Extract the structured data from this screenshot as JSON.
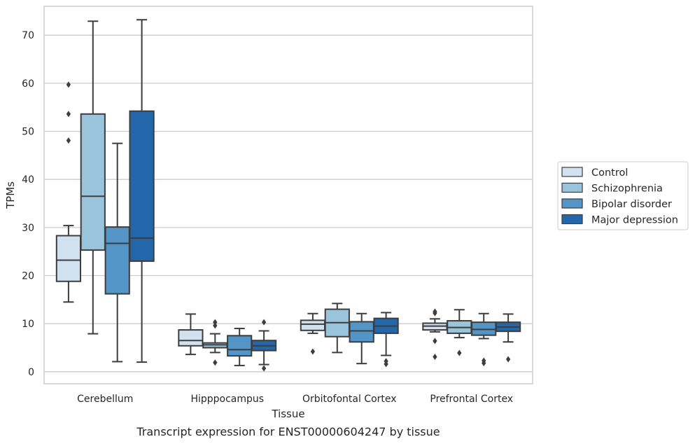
{
  "chart_data": {
    "type": "boxplot",
    "xlabel": "Tissue",
    "ylabel": "TPMs",
    "caption": "Transcript expression for ENST00000604247 by tissue",
    "ylim": [
      -2.5,
      76
    ],
    "yticks": [
      0,
      10,
      20,
      30,
      40,
      50,
      60,
      70
    ],
    "grid": "horizontal",
    "legend_position": "right",
    "categories": [
      "Cerebellum",
      "Hipppocampus",
      "Orbitofontal Cortex",
      "Prefrontal Cortex"
    ],
    "series": [
      {
        "name": "Control",
        "color": "#d1e1ef",
        "boxes": [
          {
            "whislo": 14.5,
            "q1": 18.8,
            "med": 23.2,
            "q3": 28.3,
            "whishi": 30.4,
            "fliers": [
              48.1,
              53.6,
              59.7
            ]
          },
          {
            "whislo": 3.6,
            "q1": 5.4,
            "med": 6.5,
            "q3": 8.7,
            "whishi": 12.0,
            "fliers": []
          },
          {
            "whislo": 8.0,
            "q1": 8.6,
            "med": 9.9,
            "q3": 10.7,
            "whishi": 12.1,
            "fliers": [
              4.2
            ]
          },
          {
            "whislo": 8.3,
            "q1": 8.7,
            "med": 9.5,
            "q3": 10.1,
            "whishi": 11.0,
            "fliers": [
              3.1,
              6.4,
              12.2,
              12.5
            ]
          }
        ]
      },
      {
        "name": "Schizophrenia",
        "color": "#9ac3dc",
        "boxes": [
          {
            "whislo": 7.9,
            "q1": 25.3,
            "med": 36.5,
            "q3": 53.6,
            "whishi": 72.9,
            "fliers": []
          },
          {
            "whislo": 4.0,
            "q1": 5.0,
            "med": 5.6,
            "q3": 6.0,
            "whishi": 7.9,
            "fliers": [
              1.9,
              9.6,
              10.3
            ]
          },
          {
            "whislo": 4.0,
            "q1": 7.3,
            "med": 10.2,
            "q3": 13.0,
            "whishi": 14.2,
            "fliers": []
          },
          {
            "whislo": 7.1,
            "q1": 8.0,
            "med": 9.2,
            "q3": 10.6,
            "whishi": 12.9,
            "fliers": [
              3.9
            ]
          }
        ]
      },
      {
        "name": "Bipolar disorder",
        "color": "#5295c6",
        "boxes": [
          {
            "whislo": 2.1,
            "q1": 16.2,
            "med": 26.7,
            "q3": 30.1,
            "whishi": 47.5,
            "fliers": []
          },
          {
            "whislo": 1.3,
            "q1": 3.3,
            "med": 4.6,
            "q3": 7.5,
            "whishi": 9.0,
            "fliers": []
          },
          {
            "whislo": 1.7,
            "q1": 6.2,
            "med": 8.5,
            "q3": 10.4,
            "whishi": 12.1,
            "fliers": []
          },
          {
            "whislo": 6.9,
            "q1": 7.6,
            "med": 8.8,
            "q3": 10.3,
            "whishi": 12.1,
            "fliers": [
              1.8,
              2.3
            ]
          }
        ]
      },
      {
        "name": "Major depression",
        "color": "#2366a9",
        "boxes": [
          {
            "whislo": 2.0,
            "q1": 23.0,
            "med": 27.8,
            "q3": 54.2,
            "whishi": 73.2,
            "fliers": []
          },
          {
            "whislo": 1.5,
            "q1": 4.4,
            "med": 5.4,
            "q3": 6.5,
            "whishi": 8.5,
            "fliers": [
              0.7,
              10.3
            ]
          },
          {
            "whislo": 3.4,
            "q1": 8.0,
            "med": 9.5,
            "q3": 11.1,
            "whishi": 12.3,
            "fliers": [
              1.6,
              2.2
            ]
          },
          {
            "whislo": 6.2,
            "q1": 8.4,
            "med": 9.3,
            "q3": 10.3,
            "whishi": 12.0,
            "fliers": [
              2.6
            ]
          }
        ]
      }
    ]
  }
}
